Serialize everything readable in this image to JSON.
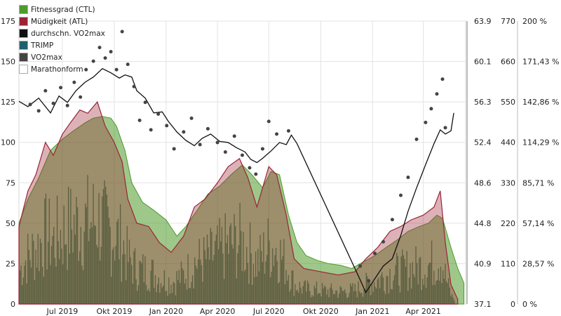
{
  "chart_data": {
    "type": "area",
    "series": [
      {
        "name": "Fitnessgrad (CTL)",
        "color": "#4e9a2a",
        "points": [
          [
            "2019-04-15",
            50
          ],
          [
            "2019-05-01",
            65
          ],
          [
            "2019-05-20",
            78
          ],
          [
            "2019-06-10",
            95
          ],
          [
            "2019-07-01",
            102
          ],
          [
            "2019-07-20",
            107
          ],
          [
            "2019-08-10",
            112
          ],
          [
            "2019-08-25",
            115
          ],
          [
            "2019-09-10",
            116
          ],
          [
            "2019-09-25",
            115
          ],
          [
            "2019-10-05",
            110
          ],
          [
            "2019-10-20",
            95
          ],
          [
            "2019-11-01",
            75
          ],
          [
            "2019-11-20",
            63
          ],
          [
            "2019-12-10",
            58
          ],
          [
            "2020-01-01",
            52
          ],
          [
            "2020-01-20",
            42
          ],
          [
            "2020-02-05",
            48
          ],
          [
            "2020-02-25",
            58
          ],
          [
            "2020-03-15",
            68
          ],
          [
            "2020-04-05",
            73
          ],
          [
            "2020-04-25",
            80
          ],
          [
            "2020-05-15",
            86
          ],
          [
            "2020-06-01",
            80
          ],
          [
            "2020-06-20",
            72
          ],
          [
            "2020-07-05",
            82
          ],
          [
            "2020-07-20",
            80
          ],
          [
            "2020-08-05",
            55
          ],
          [
            "2020-08-20",
            38
          ],
          [
            "2020-09-05",
            30
          ],
          [
            "2020-09-25",
            27
          ],
          [
            "2020-10-15",
            25
          ],
          [
            "2020-11-05",
            24
          ],
          [
            "2020-11-25",
            22
          ],
          [
            "2020-12-15",
            26
          ],
          [
            "2021-01-05",
            30
          ],
          [
            "2021-01-25",
            35
          ],
          [
            "2021-02-15",
            40
          ],
          [
            "2021-03-05",
            45
          ],
          [
            "2021-03-25",
            48
          ],
          [
            "2021-04-10",
            50
          ],
          [
            "2021-04-25",
            55
          ],
          [
            "2021-05-05",
            53
          ],
          [
            "2021-05-20",
            35
          ],
          [
            "2021-06-01",
            22
          ],
          [
            "2021-06-12",
            13
          ]
        ]
      },
      {
        "name": "Müdigkeit (ATL)",
        "color": "#9b2335",
        "points": [
          [
            "2019-04-15",
            48
          ],
          [
            "2019-05-01",
            70
          ],
          [
            "2019-05-15",
            80
          ],
          [
            "2019-06-01",
            100
          ],
          [
            "2019-06-15",
            92
          ],
          [
            "2019-07-01",
            105
          ],
          [
            "2019-07-15",
            112
          ],
          [
            "2019-08-01",
            120
          ],
          [
            "2019-08-15",
            118
          ],
          [
            "2019-09-01",
            125
          ],
          [
            "2019-09-15",
            110
          ],
          [
            "2019-10-01",
            100
          ],
          [
            "2019-10-15",
            88
          ],
          [
            "2019-10-25",
            65
          ],
          [
            "2019-11-10",
            50
          ],
          [
            "2019-12-01",
            48
          ],
          [
            "2019-12-20",
            38
          ],
          [
            "2020-01-10",
            32
          ],
          [
            "2020-02-01",
            42
          ],
          [
            "2020-02-20",
            60
          ],
          [
            "2020-03-10",
            65
          ],
          [
            "2020-04-01",
            75
          ],
          [
            "2020-04-20",
            85
          ],
          [
            "2020-05-10",
            90
          ],
          [
            "2020-05-25",
            78
          ],
          [
            "2020-06-10",
            60
          ],
          [
            "2020-07-01",
            85
          ],
          [
            "2020-07-15",
            80
          ],
          [
            "2020-08-01",
            55
          ],
          [
            "2020-08-15",
            28
          ],
          [
            "2020-09-01",
            22
          ],
          [
            "2020-10-01",
            20
          ],
          [
            "2020-11-01",
            18
          ],
          [
            "2020-12-01",
            20
          ],
          [
            "2020-12-20",
            28
          ],
          [
            "2021-01-10",
            35
          ],
          [
            "2021-02-01",
            45
          ],
          [
            "2021-02-20",
            48
          ],
          [
            "2021-03-10",
            52
          ],
          [
            "2021-04-01",
            55
          ],
          [
            "2021-04-20",
            60
          ],
          [
            "2021-05-01",
            70
          ],
          [
            "2021-05-10",
            38
          ],
          [
            "2021-05-20",
            12
          ],
          [
            "2021-06-01",
            3
          ]
        ]
      },
      {
        "name": "durchschn. VO2max",
        "color": "#111111",
        "points": [
          [
            "2019-04-15",
            56.3
          ],
          [
            "2019-05-01",
            55.8
          ],
          [
            "2019-05-20",
            56.6
          ],
          [
            "2019-06-10",
            55.2
          ],
          [
            "2019-06-25",
            56.8
          ],
          [
            "2019-07-10",
            56.2
          ],
          [
            "2019-07-25",
            57.3
          ],
          [
            "2019-08-10",
            58.1
          ],
          [
            "2019-08-25",
            58.6
          ],
          [
            "2019-09-10",
            59.4
          ],
          [
            "2019-09-25",
            59.0
          ],
          [
            "2019-10-10",
            58.5
          ],
          [
            "2019-10-20",
            58.8
          ],
          [
            "2019-11-01",
            58.6
          ],
          [
            "2019-11-10",
            57.3
          ],
          [
            "2019-11-25",
            56.6
          ],
          [
            "2019-12-10",
            55.2
          ],
          [
            "2019-12-25",
            55.3
          ],
          [
            "2020-01-05",
            54.4
          ],
          [
            "2020-01-20",
            53.4
          ],
          [
            "2020-02-05",
            52.6
          ],
          [
            "2020-02-20",
            52.1
          ],
          [
            "2020-03-05",
            52.8
          ],
          [
            "2020-03-20",
            53.2
          ],
          [
            "2020-04-05",
            52.5
          ],
          [
            "2020-04-20",
            52.4
          ],
          [
            "2020-05-05",
            51.9
          ],
          [
            "2020-05-20",
            51.5
          ],
          [
            "2020-05-30",
            50.8
          ],
          [
            "2020-06-10",
            50.5
          ],
          [
            "2020-06-20",
            50.9
          ],
          [
            "2020-07-05",
            51.6
          ],
          [
            "2020-07-20",
            52.4
          ],
          [
            "2020-08-01",
            52.2
          ],
          [
            "2020-08-10",
            53.1
          ],
          [
            "2020-08-20",
            52.3
          ],
          [
            "2020-12-10",
            39.4
          ],
          [
            "2020-12-20",
            38.2
          ],
          [
            "2021-01-05",
            39.5
          ],
          [
            "2021-01-20",
            40.7
          ],
          [
            "2021-02-05",
            41.4
          ],
          [
            "2021-02-20",
            43.6
          ],
          [
            "2021-03-05",
            45.9
          ],
          [
            "2021-03-20",
            48.1
          ],
          [
            "2021-04-05",
            50.3
          ],
          [
            "2021-04-20",
            52.3
          ],
          [
            "2021-05-01",
            53.6
          ],
          [
            "2021-05-10",
            53.2
          ],
          [
            "2021-05-20",
            53.5
          ],
          [
            "2021-05-25",
            55.2
          ]
        ]
      },
      {
        "name": "TRIMP",
        "color": "#1f5f6e"
      },
      {
        "name": "VO2max",
        "color": "#444444",
        "points": [
          [
            "2019-05-05",
            56.0
          ],
          [
            "2019-05-20",
            55.4
          ],
          [
            "2019-06-01",
            57.3
          ],
          [
            "2019-06-15",
            56.1
          ],
          [
            "2019-06-28",
            57.6
          ],
          [
            "2019-07-10",
            55.9
          ],
          [
            "2019-07-22",
            58.1
          ],
          [
            "2019-08-02",
            56.7
          ],
          [
            "2019-08-12",
            59.3
          ],
          [
            "2019-08-25",
            60.1
          ],
          [
            "2019-09-05",
            61.4
          ],
          [
            "2019-09-15",
            60.4
          ],
          [
            "2019-09-25",
            61.0
          ],
          [
            "2019-10-05",
            59.3
          ],
          [
            "2019-10-15",
            62.9
          ],
          [
            "2019-10-25",
            59.8
          ],
          [
            "2019-11-05",
            57.7
          ],
          [
            "2019-11-15",
            54.5
          ],
          [
            "2019-11-25",
            56.2
          ],
          [
            "2019-12-05",
            53.6
          ],
          [
            "2019-12-18",
            55.1
          ],
          [
            "2020-01-02",
            54.0
          ],
          [
            "2020-01-15",
            51.8
          ],
          [
            "2020-02-01",
            53.4
          ],
          [
            "2020-02-15",
            54.7
          ],
          [
            "2020-03-01",
            52.2
          ],
          [
            "2020-03-15",
            53.7
          ],
          [
            "2020-04-01",
            52.4
          ],
          [
            "2020-04-15",
            51.5
          ],
          [
            "2020-05-01",
            53.0
          ],
          [
            "2020-05-15",
            51.2
          ],
          [
            "2020-05-28",
            50.0
          ],
          [
            "2020-06-08",
            49.4
          ],
          [
            "2020-06-20",
            51.8
          ],
          [
            "2020-07-01",
            54.4
          ],
          [
            "2020-07-15",
            53.2
          ],
          [
            "2020-08-05",
            53.5
          ],
          [
            "2020-12-10",
            40.7
          ],
          [
            "2020-12-25",
            39.3
          ],
          [
            "2021-01-05",
            41.9
          ],
          [
            "2021-01-20",
            43.0
          ],
          [
            "2021-02-05",
            45.1
          ],
          [
            "2021-02-20",
            47.4
          ],
          [
            "2021-03-05",
            49.1
          ],
          [
            "2021-03-20",
            52.7
          ],
          [
            "2021-04-05",
            54.3
          ],
          [
            "2021-04-15",
            55.6
          ],
          [
            "2021-04-25",
            57.0
          ],
          [
            "2021-05-05",
            58.4
          ],
          [
            "2021-05-10",
            53.8
          ]
        ]
      },
      {
        "name": "Marathonform",
        "color": "#ffffff"
      }
    ],
    "x_ticks": [
      "Jul 2019",
      "Okt 2019",
      "Jan 2020",
      "Apr 2020",
      "Jul 2020",
      "Okt 2020",
      "Jan 2021",
      "Apr 2021"
    ],
    "y_left_ticks": [
      "0",
      "25",
      "50",
      "75",
      "100",
      "125",
      "150",
      "175"
    ],
    "y_vo2_ticks": [
      "37.1",
      "40.9",
      "44.8",
      "48.6",
      "52.4",
      "56.3",
      "60.1",
      "63.9"
    ],
    "y_trimp_ticks": [
      "0",
      "110",
      "220",
      "330",
      "440",
      "550",
      "660",
      "770"
    ],
    "y_percent_ticks": [
      "0 %",
      "28,57 %",
      "57,14 %",
      "85,71 %",
      "114,29 %",
      "142,86 %",
      "171,43 %",
      "200 %"
    ],
    "ylim_left": [
      0,
      175
    ],
    "ylim_vo2": [
      37.1,
      63.9
    ],
    "ylim_trimp": [
      0,
      770
    ],
    "ylim_percent": [
      0,
      200
    ],
    "xlim": [
      "2019-04-15",
      "2021-06-15"
    ],
    "grid": true,
    "legend": "top-left"
  }
}
